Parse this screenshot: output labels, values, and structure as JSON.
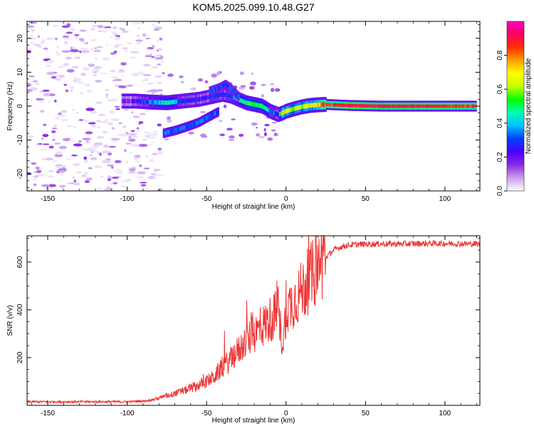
{
  "title": "KOM5.2025.099.10.48.G27",
  "chart_data": [
    {
      "type": "heatmap",
      "panel": "spectrogram",
      "xlabel": "Height of straight line (km)",
      "ylabel": "Frequency (Hz)",
      "xlim": [
        -163,
        122
      ],
      "ylim": [
        -25,
        25
      ],
      "xticks": [
        -150,
        -100,
        -50,
        0,
        50,
        100
      ],
      "yticks": [
        -20,
        -10,
        0,
        10,
        20
      ],
      "colorbar": {
        "label": "Normalized spectral amplitude",
        "range": [
          0,
          1
        ],
        "ticks": [
          "0.0",
          "0.2",
          "0.4",
          "0.6",
          "0.8"
        ],
        "colors": [
          "#ffffff",
          "#c8a0f0",
          "#8a2be2",
          "#4b00ff",
          "#0040ff",
          "#00c0ff",
          "#00ffb0",
          "#00ff00",
          "#c0ff00",
          "#ffff00",
          "#ffa000",
          "#ff3000",
          "#ff0060",
          "#ff00c0"
        ]
      },
      "ridge": {
        "x": [
          -103,
          -95,
          -85,
          -75,
          -65,
          -55,
          -50,
          -45,
          -40,
          -35,
          -30,
          -25,
          -20,
          -15,
          -10,
          -5,
          -2,
          0,
          5,
          10,
          15,
          20,
          25,
          40,
          60,
          80,
          100,
          120
        ],
        "frequency": [
          1.5,
          1.5,
          1.2,
          1.0,
          1.5,
          2.0,
          2.5,
          3.0,
          3.5,
          3.0,
          2.0,
          1.0,
          0.5,
          0.0,
          -1.5,
          -2.5,
          -2.0,
          -1.5,
          -0.8,
          -0.2,
          0.2,
          0.4,
          0.5,
          0.2,
          0.0,
          0.0,
          0.0,
          0.0
        ],
        "amplitude": [
          0.15,
          0.2,
          0.35,
          0.45,
          0.3,
          0.25,
          0.2,
          0.3,
          0.25,
          0.3,
          0.4,
          0.5,
          0.55,
          0.5,
          0.35,
          0.25,
          0.7,
          0.65,
          0.6,
          0.62,
          0.66,
          0.7,
          0.85,
          0.9,
          0.9,
          0.9,
          0.88,
          0.85
        ]
      }
    },
    {
      "type": "line",
      "panel": "snr",
      "xlabel": "Height of straight line (km)",
      "ylabel": "SNR (v/v)",
      "xlim": [
        -163,
        122
      ],
      "ylim": [
        0,
        710
      ],
      "xticks": [
        -150,
        -100,
        -50,
        0,
        50,
        100
      ],
      "yticks": [
        200,
        400,
        600
      ],
      "series": [
        {
          "color": "#ee3333",
          "x": [
            -163,
            -140,
            -120,
            -100,
            -90,
            -85,
            -80,
            -75,
            -70,
            -65,
            -60,
            -55,
            -50,
            -45,
            -40,
            -35,
            -30,
            -25,
            -20,
            -15,
            -10,
            -5,
            -2,
            0,
            5,
            10,
            15,
            20,
            25,
            30,
            35,
            40,
            50,
            60,
            70,
            80,
            90,
            100,
            110,
            122
          ],
          "values": [
            15,
            15,
            15,
            15,
            18,
            22,
            30,
            40,
            50,
            60,
            70,
            85,
            100,
            120,
            160,
            190,
            230,
            270,
            300,
            330,
            360,
            390,
            250,
            400,
            440,
            480,
            530,
            580,
            620,
            650,
            665,
            672,
            675,
            676,
            676,
            677,
            678,
            678,
            677,
            676
          ]
        }
      ]
    }
  ]
}
